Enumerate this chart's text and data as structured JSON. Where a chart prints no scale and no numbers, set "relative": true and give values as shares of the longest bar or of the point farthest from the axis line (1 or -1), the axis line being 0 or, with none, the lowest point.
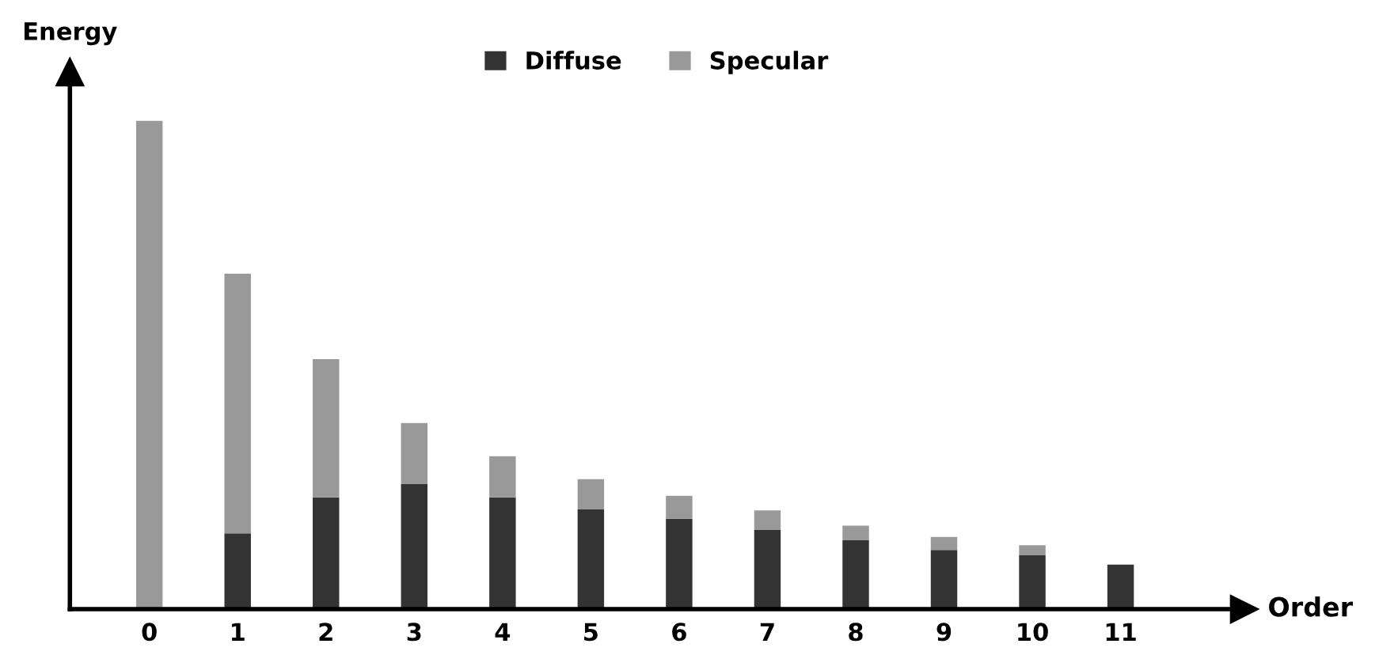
{
  "chart_data": {
    "type": "bar",
    "stacked": true,
    "relative": true,
    "xlabel": "Order",
    "ylabel": "Energy",
    "legend": "top",
    "categories": [
      "0",
      "1",
      "2",
      "3",
      "4",
      "5",
      "6",
      "7",
      "8",
      "9",
      "10",
      "11"
    ],
    "series": [
      {
        "name": "Diffuse",
        "color": "#333333",
        "values": [
          0,
          0.155,
          0.229,
          0.256,
          0.229,
          0.205,
          0.185,
          0.162,
          0.141,
          0.121,
          0.111,
          0.091
        ]
      },
      {
        "name": "Specular",
        "color": "#999999",
        "values": [
          1,
          0.532,
          0.283,
          0.125,
          0.084,
          0.061,
          0.047,
          0.04,
          0.03,
          0.027,
          0.02,
          0
        ]
      }
    ]
  }
}
